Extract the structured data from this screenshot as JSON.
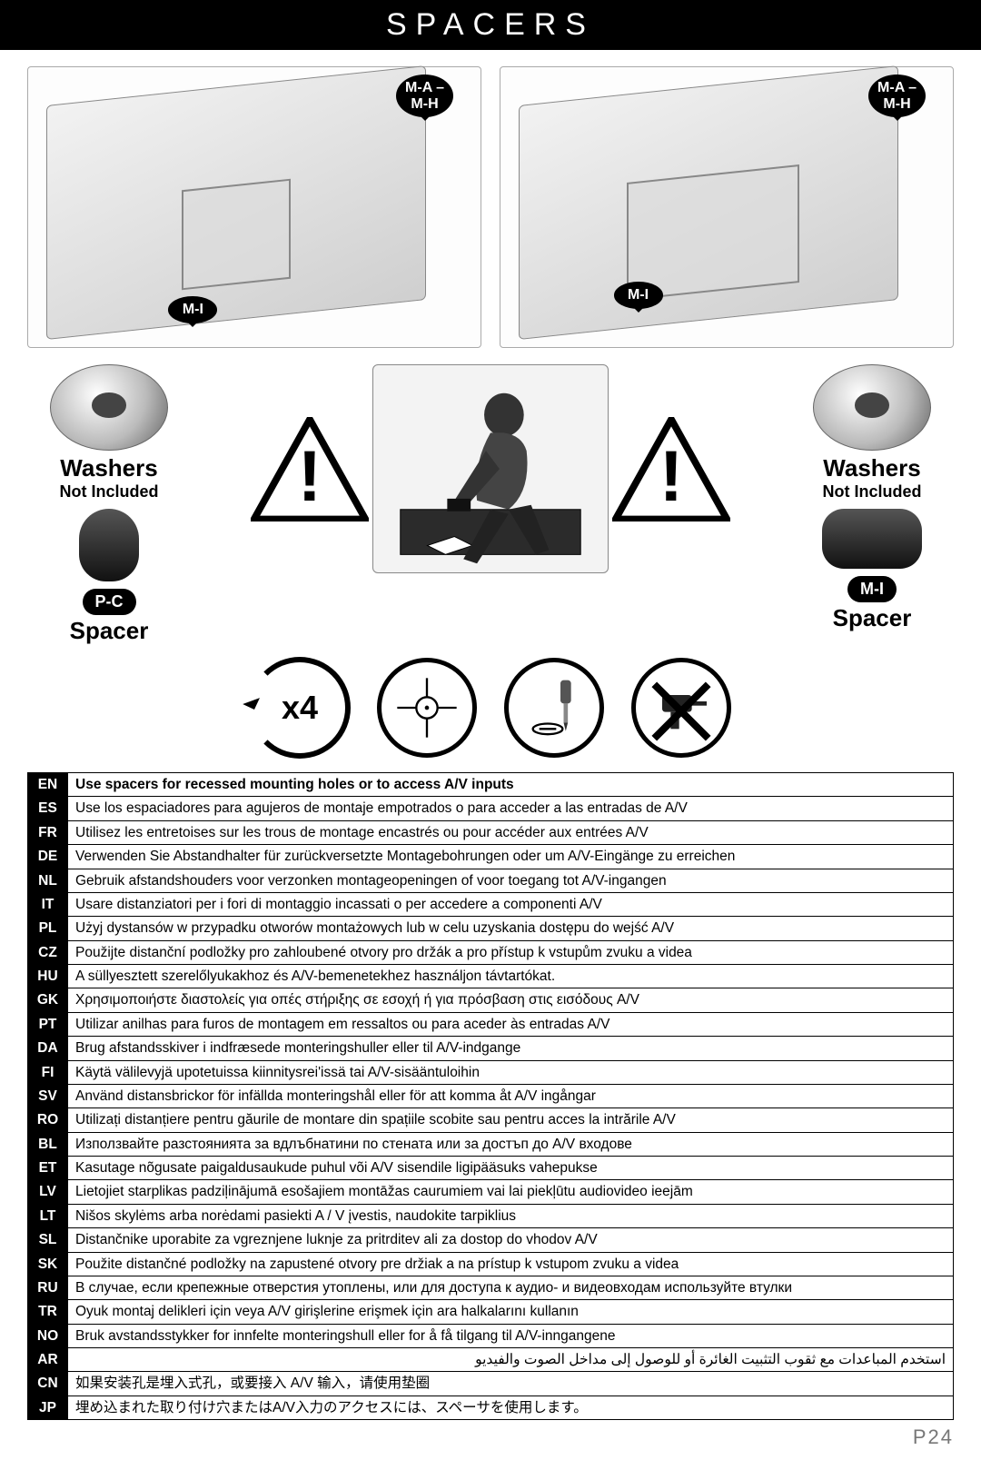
{
  "header": {
    "title": "SPACERS"
  },
  "diagram_labels": {
    "top_right": "M-A –\nM-H",
    "mi": "M-I"
  },
  "washers": {
    "title": "Washers",
    "subtitle": "Not Included"
  },
  "spacers": {
    "left_tag": "P-C",
    "right_tag": "M-I",
    "word": "Spacer"
  },
  "x4_label": "x4",
  "lang_table": {
    "columns": [
      "code",
      "text"
    ],
    "rows": [
      [
        "EN",
        "Use spacers for recessed mounting holes or to access A/V inputs"
      ],
      [
        "ES",
        "Use los espaciadores para agujeros de montaje empotrados o para acceder a las entradas de A/V"
      ],
      [
        "FR",
        "Utilisez les entretoises sur les trous de montage encastrés ou pour accéder aux entrées A/V"
      ],
      [
        "DE",
        "Verwenden Sie Abstandhalter für zurückversetzte Montagebohrungen oder um A/V-Eingänge zu erreichen"
      ],
      [
        "NL",
        "Gebruik afstandshouders voor verzonken montageopeningen of voor toegang tot A/V-ingangen"
      ],
      [
        "IT",
        "Usare distanziatori per i fori di montaggio incassati o per accedere a componenti A/V"
      ],
      [
        "PL",
        "Użyj dystansów w przypadku otworów montażowych lub w celu uzyskania dostępu do wejść A/V"
      ],
      [
        "CZ",
        "Použijte distanční podložky pro zahloubené otvory pro držák a pro přístup k vstupům zvuku a videa"
      ],
      [
        "HU",
        "A süllyesztett szerelőlyukakhoz és A/V-bemenetekhez használjon távtartókat."
      ],
      [
        "GK",
        "Χρησιμοποιήστε διαστολείς για οπές στήριξης σε εσοχή ή για πρόσβαση στις εισόδους A/V"
      ],
      [
        "PT",
        "Utilizar anilhas para furos de montagem em ressaltos ou para aceder às entradas A/V"
      ],
      [
        "DA",
        "Brug afstandsskiver i indfræsede monteringshuller eller til A/V-indgange"
      ],
      [
        "FI",
        "Käytä välilevyjä upotetuissa kiinnitysrei'issä tai A/V-sisääntuloihin"
      ],
      [
        "SV",
        "Använd distansbrickor för infällda monteringshål eller för att komma åt A/V ingångar"
      ],
      [
        "RO",
        "Utilizați distanțiere pentru găurile de montare din spațiile scobite sau pentru acces la intrările A/V"
      ],
      [
        "BL",
        "Използвайте разстоянията за вдлъбнатини по стената или за достъп до A/V входове"
      ],
      [
        "ET",
        "Kasutage nõgusate paigaldusaukude puhul või A/V sisendile ligipääsuks vahepukse"
      ],
      [
        "LV",
        "Lietojiet starplikas padziļinājumā esošajiem montāžas caurumiem vai lai piekļūtu audiovideo ieejām"
      ],
      [
        "LT",
        "Nišos skylėms arba norėdami pasiekti A / V įvestis, naudokite tarpiklius"
      ],
      [
        "SL",
        "Distančnike uporabite za vgreznjene luknje za pritrditev ali za dostop do vhodov A/V"
      ],
      [
        "SK",
        "Použite distančné podložky na zapustené otvory pre držiak a na prístup k vstupom zvuku a videa"
      ],
      [
        "RU",
        "В случае, если крепежные отверстия утоплены, или для доступа к аудио- и видеовходам используйте втулки"
      ],
      [
        "TR",
        "Oyuk montaj delikleri için veya A/V girişlerine erişmek için ara halkalarını kullanın"
      ],
      [
        "NO",
        "Bruk avstandsstykker for innfelte monteringshull eller for å få tilgang til A/V-inngangene"
      ],
      [
        "AR",
        "استخدم المباعدات مع ثقوب التثبيت الغائرة أو للوصول إلى مداخل الصوت والفيديو"
      ],
      [
        "CN",
        "如果安装孔是埋入式孔，或要接入 A/V 输入，请使用垫圈"
      ],
      [
        "JP",
        "埋め込まれた取り付け穴またはA/V入力のアクセスには、スペーサを使用します。"
      ]
    ]
  },
  "page_number": "P24",
  "colors": {
    "black": "#000000",
    "white": "#ffffff",
    "grey": "#777777"
  }
}
